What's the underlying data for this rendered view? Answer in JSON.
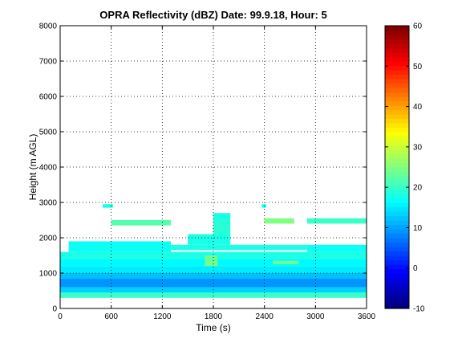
{
  "chart_data": {
    "type": "heatmap",
    "title": "OPRA Reflectivity (dBZ)  Date: 99.9.18, Hour: 5",
    "xlabel": "Time (s)",
    "ylabel": "Height (m AGL)",
    "xlim": [
      0,
      3600
    ],
    "ylim": [
      0,
      8000
    ],
    "x_ticks": [
      "0",
      "600",
      "1200",
      "1800",
      "2400",
      "3000",
      "3600"
    ],
    "y_ticks": [
      "0",
      "1000",
      "2000",
      "3000",
      "4000",
      "5000",
      "6000",
      "7000",
      "8000"
    ],
    "grid": true,
    "colorbar": {
      "colormap": "jet",
      "range": [
        -10,
        60
      ],
      "ticks": [
        "-10",
        "0",
        "10",
        "20",
        "30",
        "40",
        "50",
        "60"
      ]
    },
    "bands": [
      {
        "x_start": 0,
        "x_end": 3600,
        "y_bottom": 300,
        "y_top": 450,
        "dbz": 20
      },
      {
        "x_start": 0,
        "x_end": 3600,
        "y_bottom": 450,
        "y_top": 600,
        "dbz": 13
      },
      {
        "x_start": 0,
        "x_end": 3600,
        "y_bottom": 600,
        "y_top": 850,
        "dbz": 9
      },
      {
        "x_start": 0,
        "x_end": 3600,
        "y_bottom": 850,
        "y_top": 1000,
        "dbz": 12
      },
      {
        "x_start": 0,
        "x_end": 3600,
        "y_bottom": 1000,
        "y_top": 1200,
        "dbz": 15
      },
      {
        "x_start": 0,
        "x_end": 3600,
        "y_bottom": 1200,
        "y_top": 1400,
        "dbz": 16
      },
      {
        "x_start": 0,
        "x_end": 3600,
        "y_bottom": 1400,
        "y_top": 1600,
        "dbz": 18
      },
      {
        "x_start": 100,
        "x_end": 1300,
        "y_bottom": 1600,
        "y_top": 1900,
        "dbz": 17
      },
      {
        "x_start": 1300,
        "x_end": 2900,
        "y_bottom": 1650,
        "y_top": 1800,
        "dbz": 18
      },
      {
        "x_start": 2900,
        "x_end": 3600,
        "y_bottom": 1600,
        "y_top": 1800,
        "dbz": 17
      },
      {
        "x_start": 1500,
        "x_end": 2000,
        "y_bottom": 1800,
        "y_top": 2100,
        "dbz": 18
      },
      {
        "x_start": 1800,
        "x_end": 2000,
        "y_bottom": 2100,
        "y_top": 2500,
        "dbz": 19
      },
      {
        "x_start": 600,
        "x_end": 1300,
        "y_bottom": 2350,
        "y_top": 2500,
        "dbz": 22
      },
      {
        "x_start": 1800,
        "x_end": 2000,
        "y_bottom": 2500,
        "y_top": 2700,
        "dbz": 18
      },
      {
        "x_start": 2400,
        "x_end": 2750,
        "y_bottom": 2400,
        "y_top": 2550,
        "dbz": 25
      },
      {
        "x_start": 2900,
        "x_end": 3600,
        "y_bottom": 2400,
        "y_top": 2550,
        "dbz": 20
      },
      {
        "x_start": 500,
        "x_end": 620,
        "y_bottom": 2850,
        "y_top": 2950,
        "dbz": 18
      },
      {
        "x_start": 2370,
        "x_end": 2420,
        "y_bottom": 2850,
        "y_top": 2950,
        "dbz": 17
      },
      {
        "x_start": 1700,
        "x_end": 1850,
        "y_bottom": 1200,
        "y_top": 1500,
        "dbz": 24
      },
      {
        "x_start": 2500,
        "x_end": 2800,
        "y_bottom": 1250,
        "y_top": 1350,
        "dbz": 24
      }
    ]
  }
}
